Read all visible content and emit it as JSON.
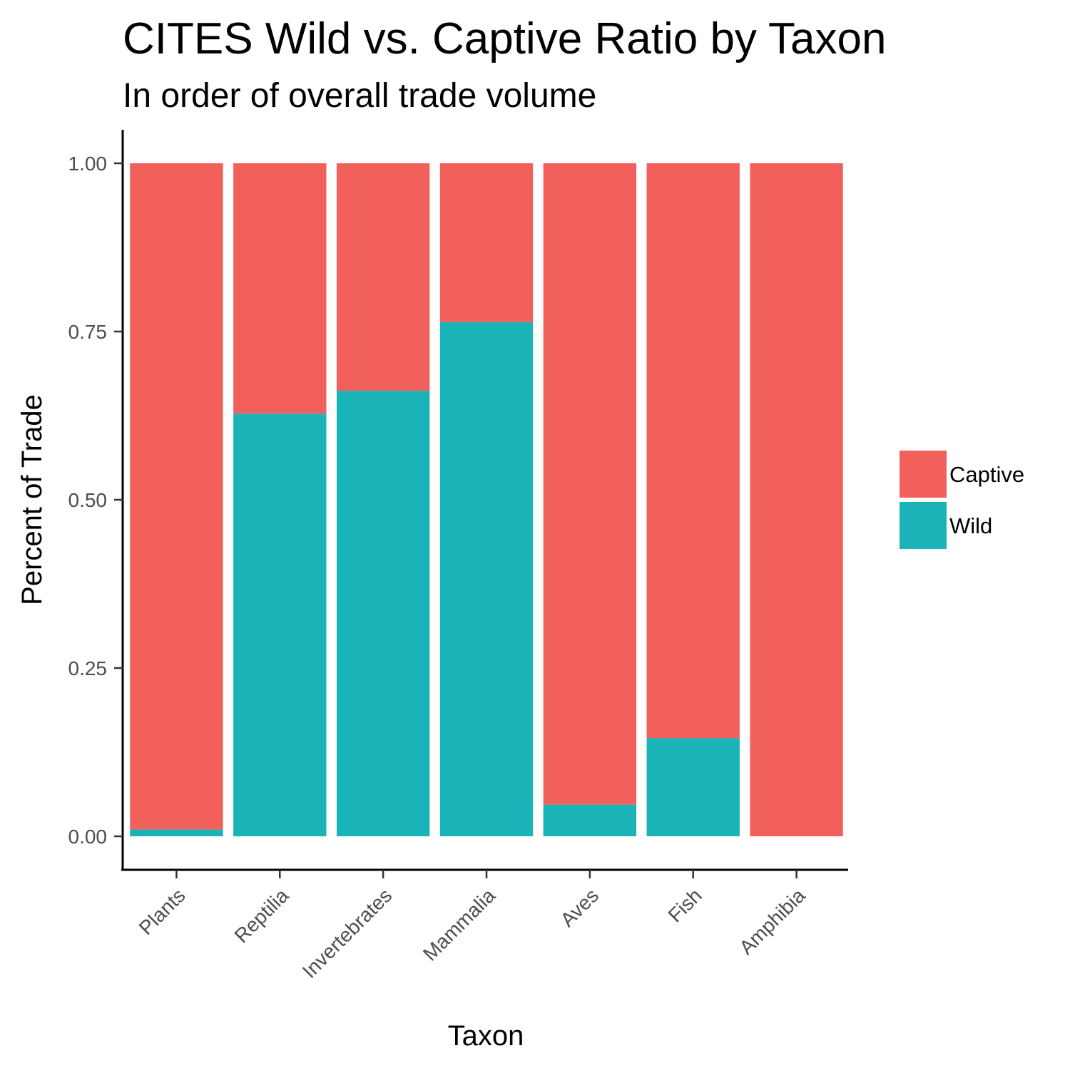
{
  "chart_data": {
    "type": "bar",
    "stacked": true,
    "title": "CITES Wild vs. Captive Ratio by Taxon",
    "subtitle": "In order of overall trade volume",
    "xlabel": "Taxon",
    "ylabel": "Percent of Trade",
    "categories": [
      "Plants",
      "Reptilia",
      "Invertebrates",
      "Mammalia",
      "Aves",
      "Fish",
      "Amphibia"
    ],
    "series": [
      {
        "name": "Wild",
        "color": "#1AB3B8",
        "values": [
          0.01,
          0.628,
          0.662,
          0.764,
          0.047,
          0.146,
          0.0
        ]
      },
      {
        "name": "Captive",
        "color": "#F2605C",
        "values": [
          0.99,
          0.372,
          0.338,
          0.236,
          0.953,
          0.854,
          1.0
        ]
      }
    ],
    "ylim": [
      0,
      1
    ],
    "yticks": [
      "0.00",
      "0.25",
      "0.50",
      "0.75",
      "1.00"
    ],
    "legend": {
      "position": "right",
      "entries": [
        {
          "label": "Captive",
          "color": "#F2605C"
        },
        {
          "label": "Wild",
          "color": "#1AB3B8"
        }
      ]
    },
    "grid": false
  }
}
